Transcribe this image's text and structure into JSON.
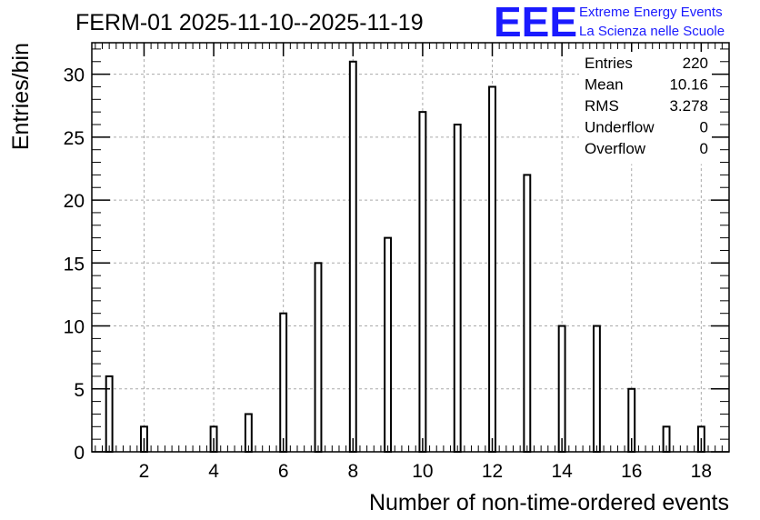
{
  "chart_data": {
    "type": "bar",
    "title": "FERM-01 2025-11-10--2025-11-19",
    "xlabel": "Number of non-time-ordered events",
    "ylabel": "Entries/bin",
    "xlim": [
      0.5,
      18.8
    ],
    "ylim": [
      0,
      32.5
    ],
    "x_ticks": [
      "2",
      "4",
      "6",
      "8",
      "10",
      "12",
      "14",
      "16",
      "18"
    ],
    "y_ticks": [
      "0",
      "5",
      "10",
      "15",
      "20",
      "25",
      "30"
    ],
    "grid": true,
    "x": [
      1,
      2,
      4,
      5,
      6,
      7,
      8,
      9,
      10,
      11,
      12,
      13,
      14,
      15,
      16,
      17,
      18
    ],
    "values": [
      6,
      2,
      2,
      3,
      11,
      15,
      31,
      17,
      27,
      26,
      29,
      22,
      10,
      10,
      5,
      2,
      2
    ],
    "bar_fill": "#ffffff",
    "bar_stroke": "#000000",
    "grid_color": "#aaaaaa",
    "stats": [
      {
        "label": "Entries",
        "value": "220"
      },
      {
        "label": "Mean",
        "value": "10.16"
      },
      {
        "label": "RMS",
        "value": "3.278"
      },
      {
        "label": "Underflow",
        "value": "0"
      },
      {
        "label": "Overflow",
        "value": "0"
      }
    ]
  },
  "logo": {
    "mark": "EEE",
    "line1": "Extreme Energy Events",
    "line2": "La Scienza nelle Scuole",
    "color": "#1a1aff"
  }
}
